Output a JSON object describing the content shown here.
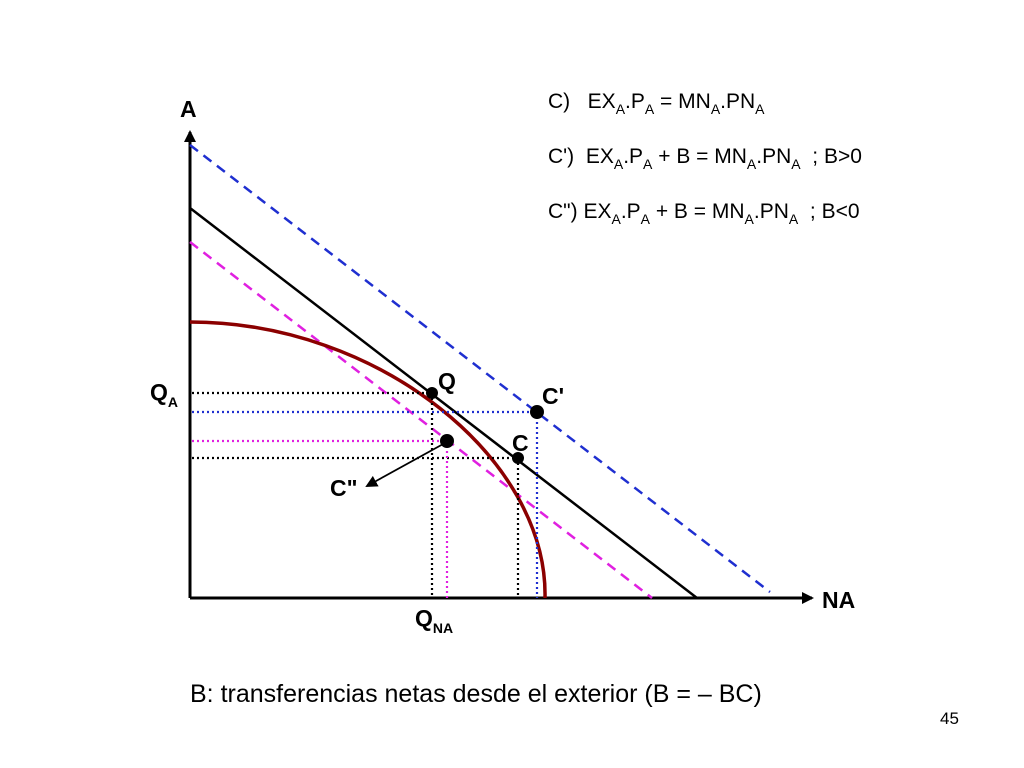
{
  "axes": {
    "y_label": "A",
    "x_label": "NA",
    "y_tick": {
      "main": "Q",
      "sub": "A"
    },
    "x_tick": {
      "main": "Q",
      "sub": "NA"
    }
  },
  "points": {
    "q": "Q",
    "c": "C",
    "c_prime": "C'",
    "c_double": "C\""
  },
  "equations": [
    {
      "prefix": "C)   ",
      "text": "EX_A.P_A = MN_A.PN_A",
      "suffix": ""
    },
    {
      "prefix": "C')  ",
      "text": "EX_A.P_A + B = MN_A.PN_A",
      "suffix": "  ; B>0"
    },
    {
      "prefix": "C\") ",
      "text": "EX_A.P_A + B = MN_A.PN_A",
      "suffix": "  ; B<0"
    }
  ],
  "eq_parts": {
    "ex": "EX",
    "p": ".P",
    "eq": " = MN",
    "eqB": " + B = MN",
    "pn": ".PN",
    "sub": "A"
  },
  "footer": "B: transferencias netas desde el exterior (B = – BC)",
  "page_number": "45",
  "colors": {
    "ppf": "#8b0000",
    "budget_c": "#000000",
    "budget_c_prime": "#1f2fd0",
    "budget_c_double": "#e020e0",
    "guide_black": "#000000",
    "guide_blue": "#1f2fd0",
    "guide_magenta": "#e020e0"
  }
}
